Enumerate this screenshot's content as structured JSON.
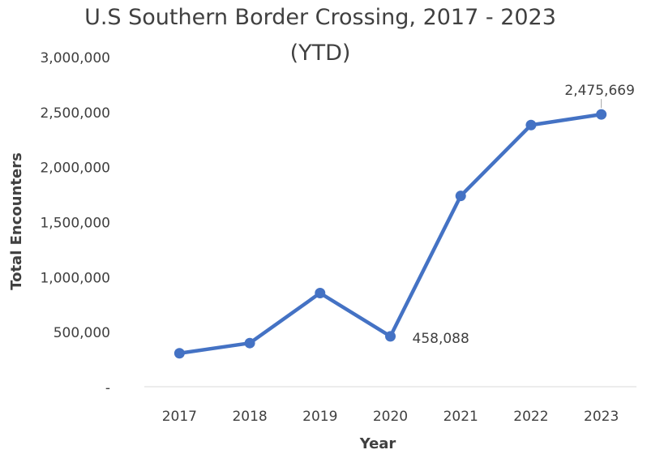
{
  "chart_data": {
    "type": "line",
    "title": "U.S Southern Border Crossing, 2017 - 2023 (YTD)",
    "title_lines": [
      "U.S Southern Border Crossing, 2017 - 2023",
      "(YTD)"
    ],
    "xlabel": "Year",
    "ylabel": "Total Encounters",
    "categories": [
      "2017",
      "2018",
      "2019",
      "2020",
      "2021",
      "2022",
      "2023"
    ],
    "series": [
      {
        "values": [
          303916,
          396579,
          851508,
          458088,
          1734686,
          2378944,
          2475669
        ]
      }
    ],
    "ylim": [
      0,
      3000000
    ],
    "y_ticks": [
      {
        "value": 0,
        "label": "-"
      },
      {
        "value": 500000,
        "label": "500,000"
      },
      {
        "value": 1000000,
        "label": "1,000,000"
      },
      {
        "value": 1500000,
        "label": "1,500,000"
      },
      {
        "value": 2000000,
        "label": "2,000,000"
      },
      {
        "value": 2500000,
        "label": "2,500,000"
      },
      {
        "value": 3000000,
        "label": "3,000,000"
      }
    ],
    "data_labels": [
      {
        "index": 3,
        "text": "458,088"
      },
      {
        "index": 6,
        "text": "2,475,669"
      }
    ],
    "grid": false,
    "legend": "none",
    "colors": {
      "line": "#4472C4",
      "text": "#404040",
      "axis": "#D9D9D9"
    }
  }
}
